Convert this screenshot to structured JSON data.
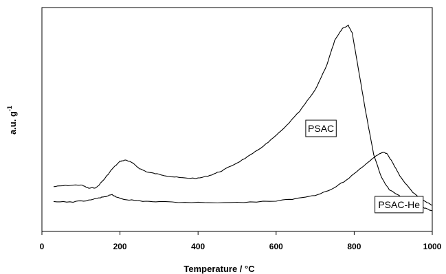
{
  "chart_data": {
    "type": "line",
    "title": "",
    "xlabel": "Temperature /  °C",
    "ylabel": "a.u. g",
    "ylabel_superscript": "-1",
    "xlim": [
      0,
      1000
    ],
    "ylim": [
      0,
      100
    ],
    "x_ticks": [
      0,
      200,
      400,
      600,
      800,
      1000
    ],
    "y_ticks_shown": false,
    "grid": false,
    "series": [
      {
        "name": "PSAC",
        "color": "#000000",
        "points": [
          [
            30,
            20.0
          ],
          [
            60,
            20.5
          ],
          [
            100,
            20.8
          ],
          [
            120,
            19.3
          ],
          [
            140,
            19.6
          ],
          [
            160,
            23.4
          ],
          [
            180,
            27.9
          ],
          [
            200,
            31.3
          ],
          [
            215,
            31.9
          ],
          [
            230,
            30.8
          ],
          [
            250,
            28.1
          ],
          [
            270,
            26.5
          ],
          [
            300,
            25.5
          ],
          [
            330,
            24.5
          ],
          [
            360,
            23.9
          ],
          [
            400,
            23.7
          ],
          [
            430,
            25.0
          ],
          [
            460,
            27.0
          ],
          [
            500,
            30.6
          ],
          [
            540,
            34.7
          ],
          [
            580,
            39.8
          ],
          [
            620,
            46.0
          ],
          [
            660,
            53.6
          ],
          [
            700,
            63.1
          ],
          [
            730,
            74.4
          ],
          [
            750,
            85.2
          ],
          [
            770,
            90.7
          ],
          [
            785,
            92.0
          ],
          [
            795,
            88.7
          ],
          [
            810,
            73.4
          ],
          [
            830,
            53.0
          ],
          [
            850,
            34.4
          ],
          [
            870,
            24.0
          ],
          [
            890,
            18.6
          ],
          [
            920,
            15.4
          ],
          [
            950,
            12.6
          ],
          [
            980,
            10.5
          ],
          [
            1000,
            9.2
          ]
        ]
      },
      {
        "name": "PSAC-He",
        "color": "#000000",
        "points": [
          [
            30,
            13.2
          ],
          [
            80,
            13.2
          ],
          [
            120,
            13.9
          ],
          [
            150,
            15.1
          ],
          [
            170,
            15.9
          ],
          [
            180,
            16.4
          ],
          [
            190,
            15.4
          ],
          [
            210,
            14.4
          ],
          [
            250,
            13.6
          ],
          [
            300,
            13.2
          ],
          [
            400,
            12.9
          ],
          [
            500,
            12.9
          ],
          [
            600,
            13.6
          ],
          [
            650,
            14.6
          ],
          [
            700,
            16.2
          ],
          [
            740,
            18.6
          ],
          [
            780,
            22.9
          ],
          [
            820,
            28.7
          ],
          [
            850,
            33.0
          ],
          [
            865,
            34.7
          ],
          [
            875,
            35.4
          ],
          [
            885,
            34.7
          ],
          [
            900,
            30.2
          ],
          [
            920,
            23.9
          ],
          [
            950,
            17.3
          ],
          [
            980,
            13.5
          ],
          [
            1000,
            11.6
          ]
        ]
      }
    ],
    "legend": {
      "placement": "inline",
      "entries": [
        {
          "text": "PSAC",
          "anchor_x": 715,
          "anchor_y": 46
        },
        {
          "text": "PSAC-He",
          "anchor_x": 915,
          "anchor_y": 12
        }
      ]
    }
  }
}
